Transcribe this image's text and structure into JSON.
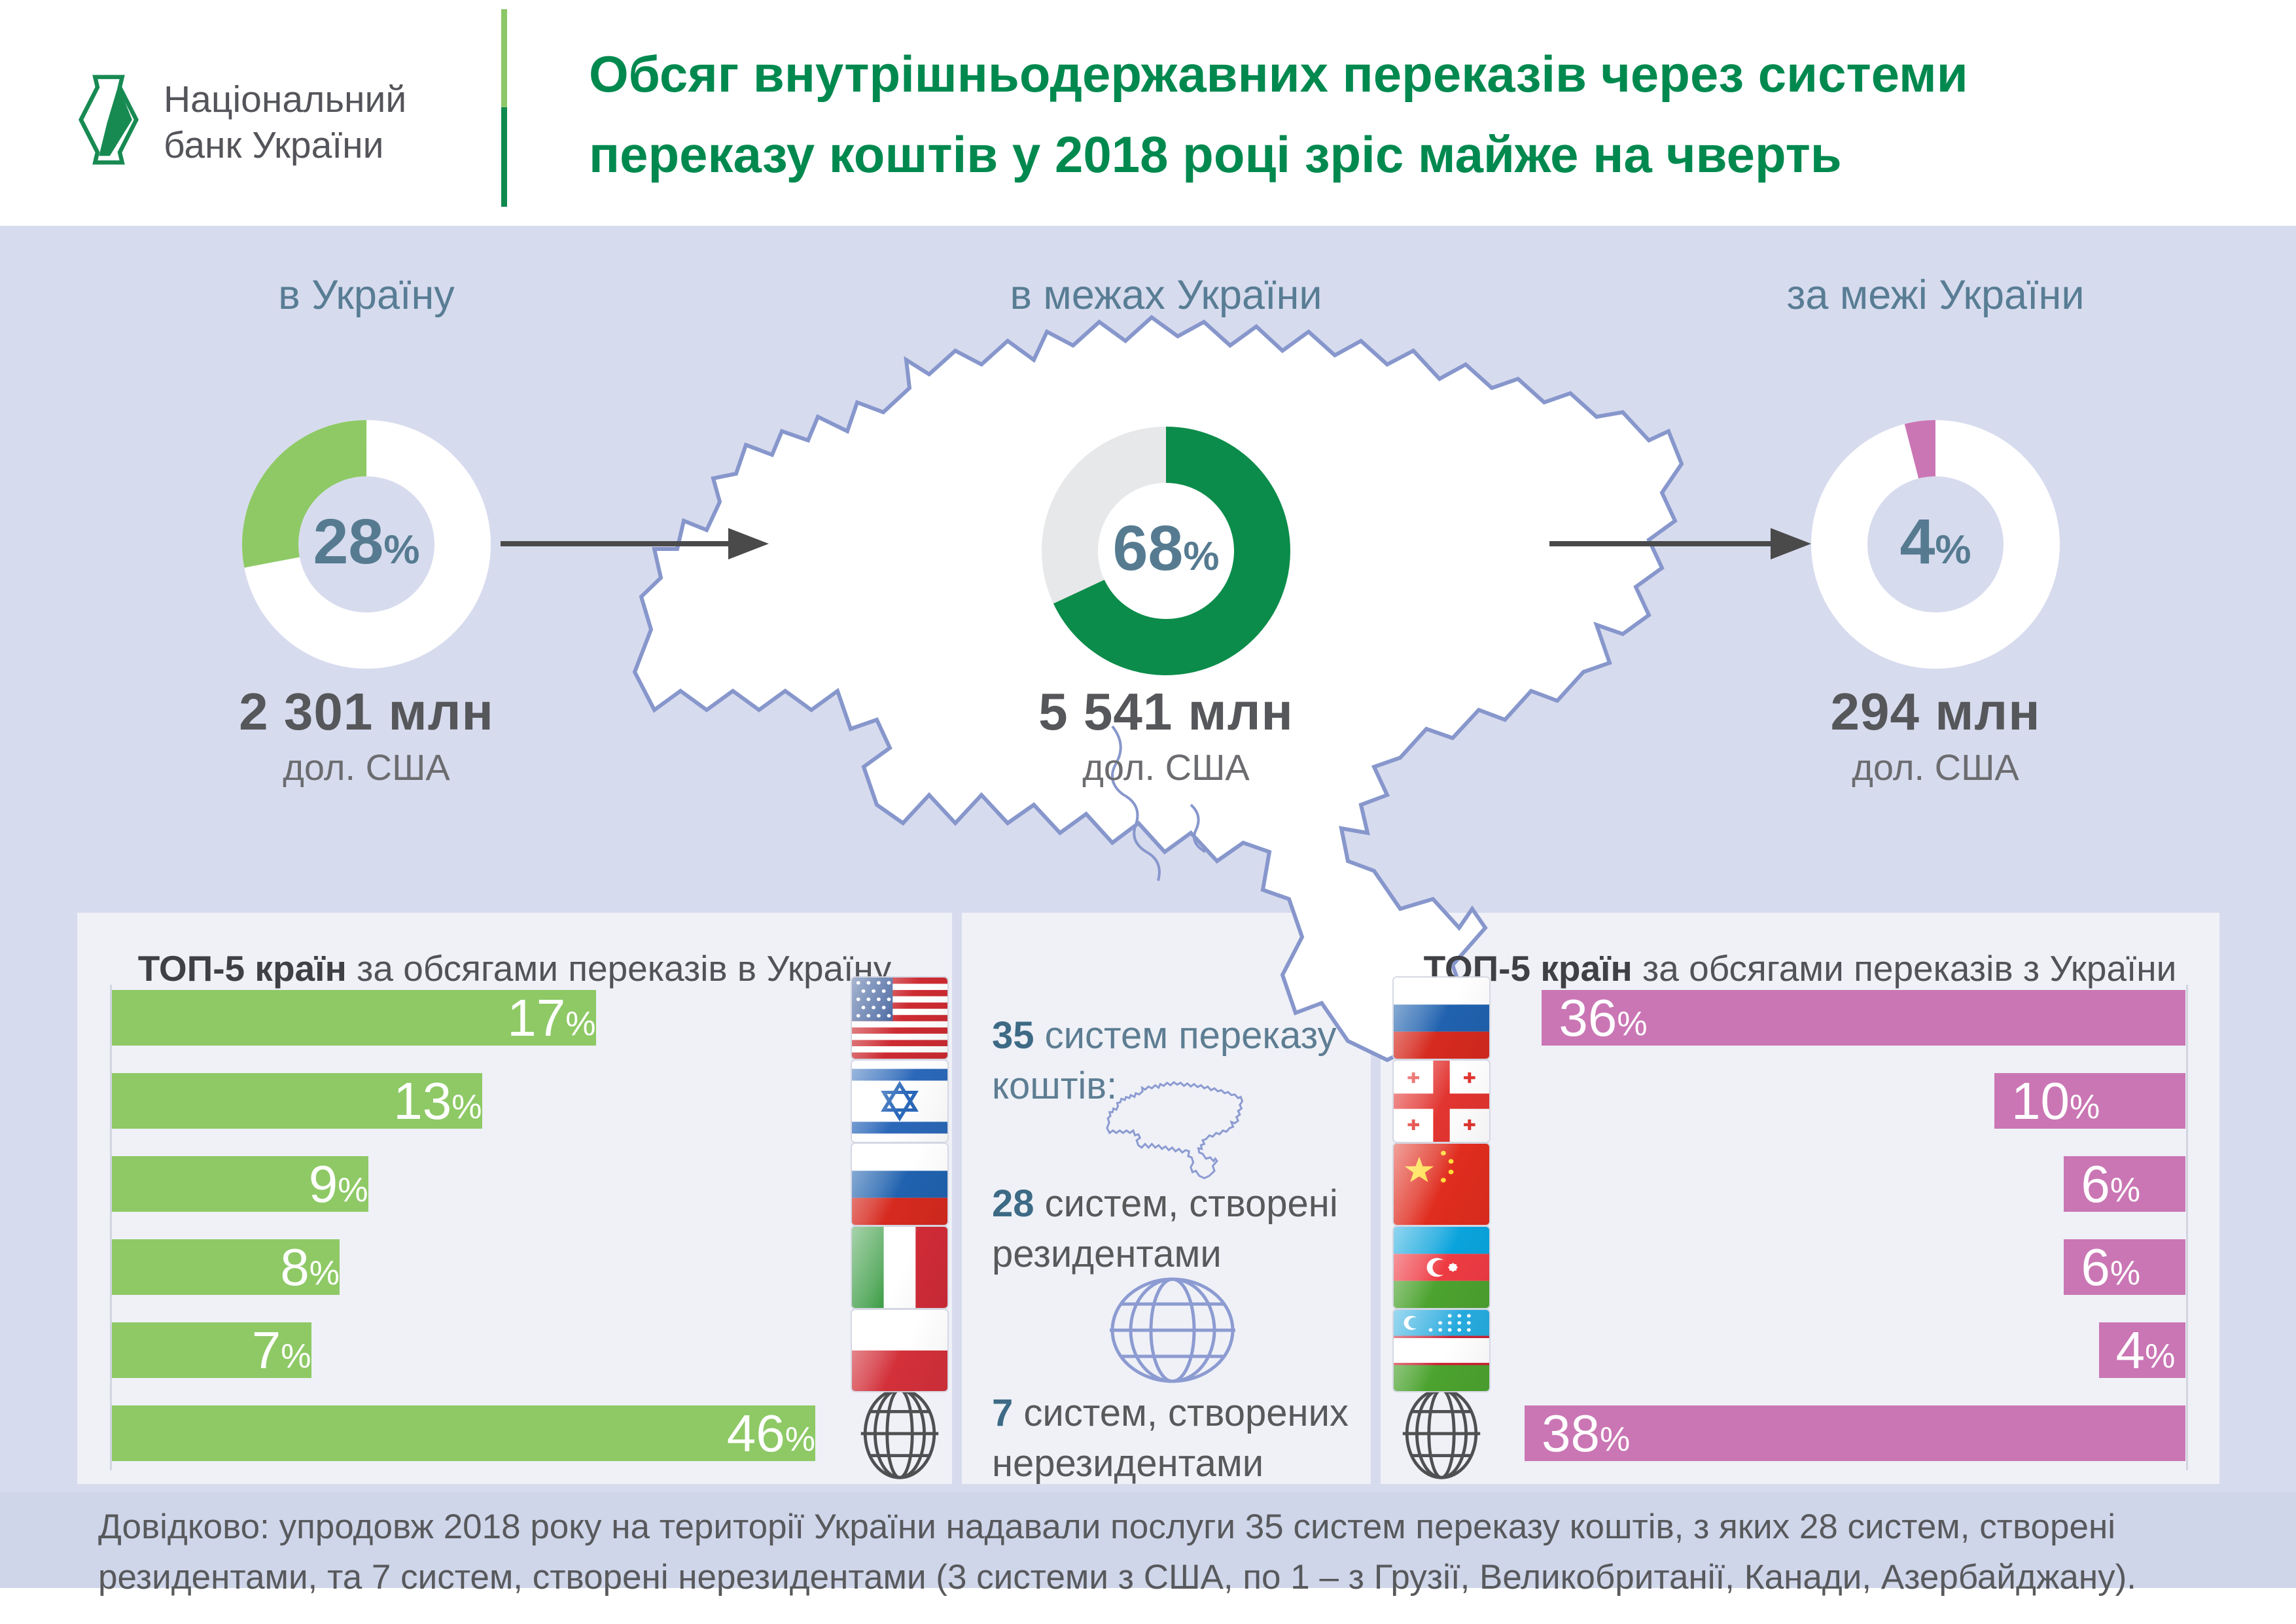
{
  "strings": {
    "pct": "%"
  },
  "header": {
    "bank_name_line1": "Національний",
    "bank_name_line2": "банк України",
    "title_line1": "Обсяг внутрішньодержавних переказів через системи",
    "title_line2": "переказу коштів у 2018 році зріс майже на чверть"
  },
  "flows": [
    {
      "label": "в Україну",
      "percent": 28,
      "value": "2 301 млн",
      "currency": "дол. США",
      "color": "#8ec966",
      "rest_color": "#ffffff",
      "direction": "ccw"
    },
    {
      "label": "в межах України",
      "percent": 68,
      "value": "5 541 млн",
      "currency": "дол. США",
      "color": "#0b8c4a",
      "rest_color": "#e7e8ea",
      "direction": "cw"
    },
    {
      "label": "за межі України",
      "percent": 4,
      "value": "294 млн",
      "currency": "дол. США",
      "color": "#ca76b4",
      "rest_color": "#ffffff",
      "direction": "ccw"
    }
  ],
  "left_panel": {
    "title_bold": "ТОП-5 країн",
    "title_rest": " за обсягами переказів в Україну",
    "bar_color": "#8ec966",
    "bars": [
      {
        "country": "США",
        "flag": "usa-flag",
        "percent": 17
      },
      {
        "country": "Ізраїль",
        "flag": "israel-flag",
        "percent": 13
      },
      {
        "country": "Росія",
        "flag": "russia-flag",
        "percent": 9
      },
      {
        "country": "Італія",
        "flag": "italy-flag",
        "percent": 8
      },
      {
        "country": "Польща",
        "flag": "poland-flag",
        "percent": 7
      },
      {
        "country": "Інші країни",
        "flag": "globe-icon",
        "percent": 46
      }
    ]
  },
  "middle_panel": {
    "stat1_number": "35",
    "stat1_text": " систем переказу коштів:",
    "stat2_number": "28",
    "stat2_text": " систем, створені резидентами",
    "stat3_number": "7",
    "stat3_text": " систем, створених нерезидентами"
  },
  "right_panel": {
    "title_bold": "ТОП-5 країн",
    "title_rest": " за обсягами переказів з України",
    "bar_color": "#ca76b4",
    "bars": [
      {
        "country": "Росія",
        "flag": "russia-flag",
        "percent": 36
      },
      {
        "country": "Грузія",
        "flag": "georgia-flag",
        "percent": 10
      },
      {
        "country": "Китай",
        "flag": "china-flag",
        "percent": 6
      },
      {
        "country": "Азербайджан",
        "flag": "azerbaijan-flag",
        "percent": 6
      },
      {
        "country": "Узбекистан",
        "flag": "uzbekistan-flag",
        "percent": 4
      },
      {
        "country": "Інші країни",
        "flag": "globe-icon",
        "percent": 38
      }
    ]
  },
  "footer": {
    "text": "Довідково: упродовж 2018 року на території України надавали послуги 35 систем переказу коштів, з яких 28 систем, створені резидентами, та 7 систем, створені нерезидентами (3 системи з США, по 1 – з Грузії, Великобританії, Канади, Азербайджану)."
  },
  "chart_data": [
    {
      "type": "pie",
      "title": "в Україну",
      "slices": [
        {
          "label": "частка переказів в Україну",
          "value": 28
        },
        {
          "label": "решта",
          "value": 72
        }
      ],
      "center_label": "28%",
      "annotation": "2 301 млн дол. США"
    },
    {
      "type": "pie",
      "title": "в межах України",
      "slices": [
        {
          "label": "частка переказів в межах України",
          "value": 68
        },
        {
          "label": "решта",
          "value": 32
        }
      ],
      "center_label": "68%",
      "annotation": "5 541 млн дол. США"
    },
    {
      "type": "pie",
      "title": "за межі України",
      "slices": [
        {
          "label": "частка переказів за межі України",
          "value": 4
        },
        {
          "label": "решта",
          "value": 96
        }
      ],
      "center_label": "4%",
      "annotation": "294 млн дол. США"
    },
    {
      "type": "bar",
      "orientation": "horizontal",
      "title": "ТОП-5 країн за обсягами переказів в Україну",
      "categories": [
        "США",
        "Ізраїль",
        "Росія",
        "Італія",
        "Польща",
        "Інші країни"
      ],
      "values": [
        17,
        13,
        9,
        8,
        7,
        46
      ],
      "unit": "%"
    },
    {
      "type": "bar",
      "orientation": "horizontal",
      "title": "ТОП-5 країн за обсягами переказів з України",
      "categories": [
        "Росія",
        "Грузія",
        "Китай",
        "Азербайджан",
        "Узбекистан",
        "Інші країни"
      ],
      "values": [
        36,
        10,
        6,
        6,
        4,
        38
      ],
      "unit": "%"
    }
  ]
}
